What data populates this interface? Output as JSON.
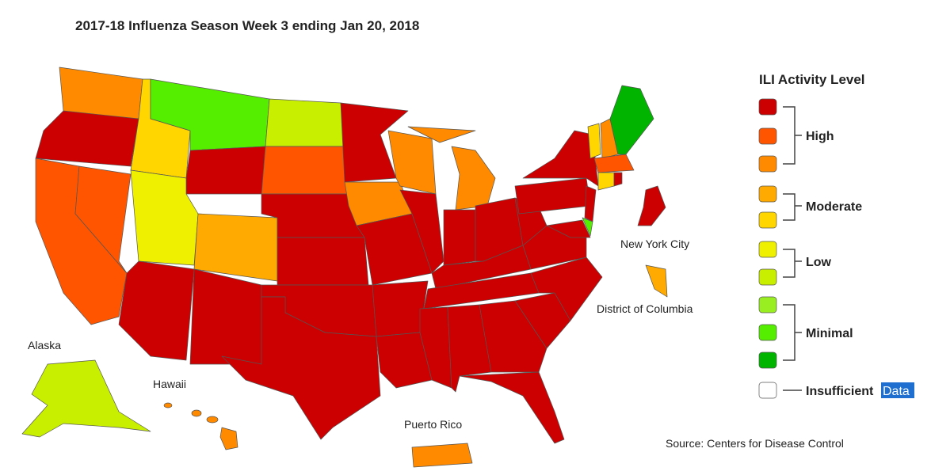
{
  "header": {
    "title": "2017-18 Influenza Season Week 3 ending Jan 20, 2018"
  },
  "legend": {
    "title": "ILI Activity Level",
    "level_colors": [
      "#cc0000",
      "#ff5500",
      "#ff8a00",
      "#ffaa00",
      "#ffd600",
      "#eef000",
      "#c8ee00",
      "#99ee22",
      "#55ee00",
      "#00b400"
    ],
    "insufficient_color": "#ffffff",
    "groups": [
      "High",
      "Moderate",
      "Low",
      "Minimal"
    ],
    "insufficient": "Insufficient",
    "insufficient_selected": "Data"
  },
  "map_labels": {
    "nyc": "New York City",
    "dc": "District of Columbia",
    "alaska": "Alaska",
    "hawaii": "Hawaii",
    "puerto_rico": "Puerto Rico"
  },
  "footer": {
    "source": "Source: Centers for Disease Control"
  }
}
